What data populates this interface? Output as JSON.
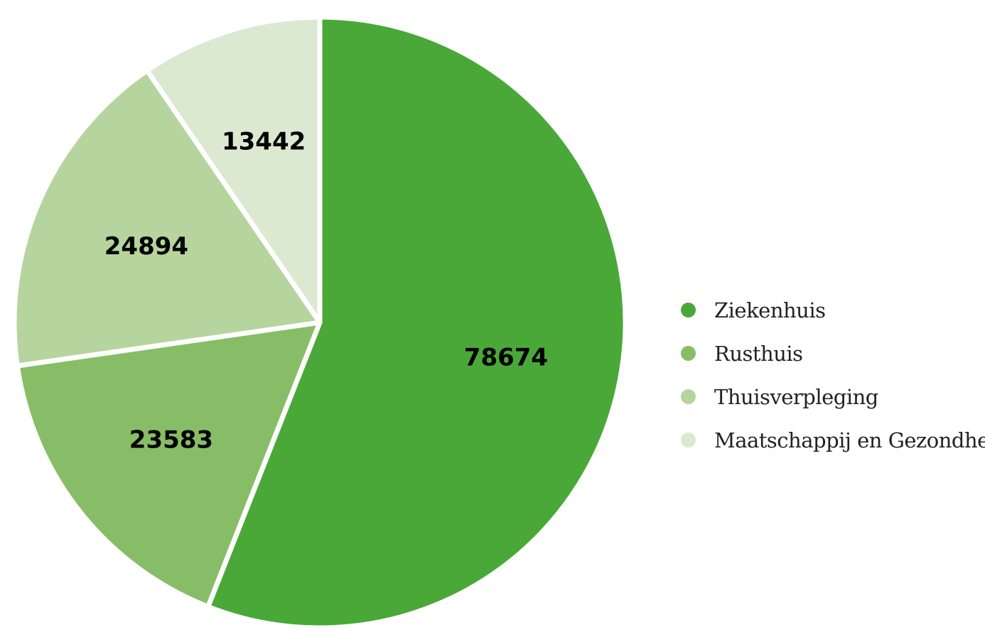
{
  "chart_data": {
    "type": "pie",
    "title": "",
    "categories": [
      "Ziekenhuis",
      "Rusthuis",
      "Thuisverpleging",
      "Maatschappij en Gezondheid"
    ],
    "values": [
      78674,
      23583,
      24894,
      13442
    ],
    "data_labels": [
      "78674",
      "23583",
      "24894",
      "13442"
    ],
    "colors": [
      "#4aa838",
      "#88bd67",
      "#b6d49e",
      "#dce9d1"
    ],
    "start_angle_deg": 0,
    "direction": "clockwise",
    "legend_position": "right"
  }
}
